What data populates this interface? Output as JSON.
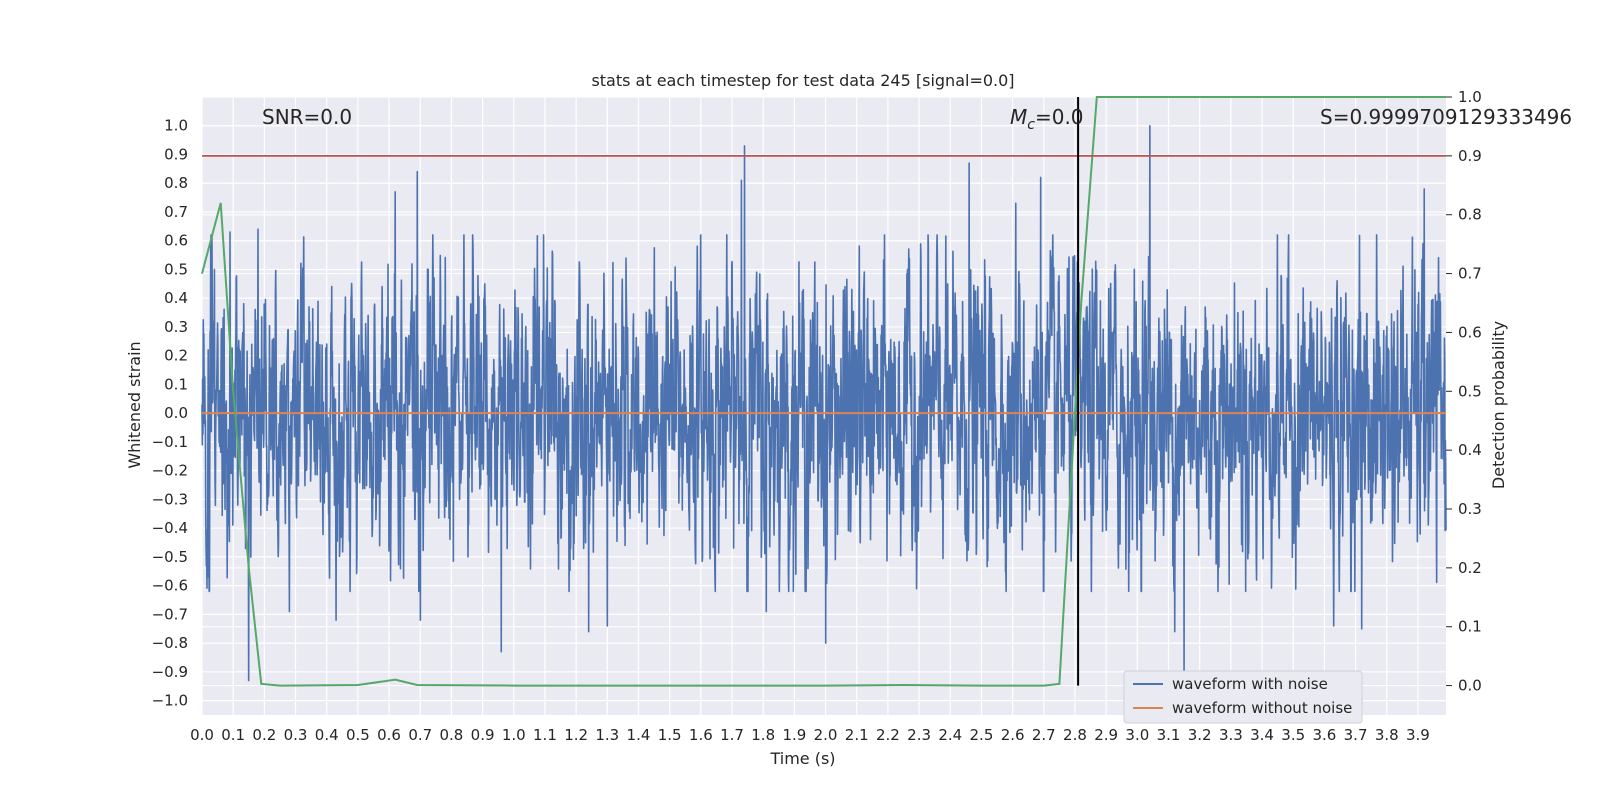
{
  "chart_data": {
    "type": "line",
    "title": "stats at each timestep for test data 245 [signal=0.0]",
    "xlabel": "Time (s)",
    "ylabel": "Whitened strain",
    "y2label": "Detection probability",
    "xlim": [
      0.0,
      3.99
    ],
    "ylim": [
      -1.05,
      1.1
    ],
    "y2lim": [
      -0.05,
      1.0
    ],
    "xticks": [
      0.0,
      0.1,
      0.2,
      0.3,
      0.4,
      0.5,
      0.6,
      0.7,
      0.8,
      0.9,
      1.0,
      1.1,
      1.2,
      1.3,
      1.4,
      1.5,
      1.6,
      1.7,
      1.8,
      1.9,
      2.0,
      2.1,
      2.2,
      2.3,
      2.4,
      2.5,
      2.6,
      2.7,
      2.8,
      2.9,
      3.0,
      3.1,
      3.2,
      3.3,
      3.4,
      3.5,
      3.6,
      3.7,
      3.8,
      3.9
    ],
    "yticks": [
      1.0,
      0.9,
      0.8,
      0.7,
      0.6,
      0.5,
      0.4,
      0.3,
      0.2,
      0.1,
      0.0,
      -0.1,
      -0.2,
      -0.3,
      -0.4,
      -0.5,
      -0.6,
      -0.7,
      -0.8,
      -0.9,
      -1.0
    ],
    "y2ticks": [
      1.0,
      0.9,
      0.8,
      0.7,
      0.6,
      0.5,
      0.4,
      0.3,
      0.2,
      0.1,
      0.0
    ],
    "grid": true,
    "legend_position": "bottom-right",
    "series": [
      {
        "name": "waveform with noise",
        "color": "#4c72b0",
        "axis": "left",
        "description": "whitened noisy strain, dense oscillation roughly between -0.6 and 0.6",
        "peaks": [
          [
            0.04,
            0.5
          ],
          [
            0.09,
            0.63
          ],
          [
            0.15,
            -0.93
          ],
          [
            0.18,
            0.64
          ],
          [
            0.28,
            -0.69
          ],
          [
            0.43,
            -0.72
          ],
          [
            0.62,
            0.77
          ],
          [
            0.69,
            0.84
          ],
          [
            0.7,
            -0.72
          ],
          [
            0.96,
            -0.83
          ],
          [
            1.24,
            -0.76
          ],
          [
            1.3,
            -0.74
          ],
          [
            1.73,
            0.81
          ],
          [
            1.74,
            0.93
          ],
          [
            1.81,
            -0.69
          ],
          [
            2.0,
            -0.8
          ],
          [
            2.46,
            0.87
          ],
          [
            2.61,
            0.73
          ],
          [
            2.69,
            0.82
          ],
          [
            3.04,
            1.0
          ],
          [
            3.12,
            -0.76
          ],
          [
            3.15,
            -0.92
          ],
          [
            3.63,
            -0.74
          ],
          [
            3.72,
            -0.75
          ],
          [
            3.92,
            0.78
          ]
        ]
      },
      {
        "name": "waveform without noise",
        "color": "#dd8452",
        "axis": "left",
        "x": [
          0.0,
          3.99
        ],
        "y": [
          0.0,
          0.0
        ]
      },
      {
        "name": "",
        "color": "#55a868",
        "axis": "right",
        "x": [
          0.0,
          0.06,
          0.1,
          0.15,
          0.19,
          0.25,
          0.5,
          0.62,
          0.69,
          1.0,
          2.0,
          2.25,
          2.5,
          2.7,
          2.75,
          2.82,
          2.87,
          3.0,
          3.5,
          3.9,
          3.99
        ],
        "y": [
          0.7,
          0.82,
          0.5,
          0.2,
          0.003,
          0.0,
          0.001,
          0.01,
          0.001,
          0.0,
          0.0,
          0.001,
          0.0,
          0.0,
          0.003,
          0.65,
          1.0,
          1.0,
          1.0,
          1.0,
          1.0
        ]
      }
    ],
    "reference_lines": [
      {
        "axis": "right",
        "type": "horizontal",
        "value": 0.9,
        "color": "#c44e52"
      },
      {
        "axis": "right",
        "type": "vertical",
        "value": 2.81,
        "range": [
          0.0,
          1.0
        ],
        "color": "#000000"
      }
    ],
    "annotations": {
      "snr": "SNR=0.0",
      "mc_symbol": "M",
      "mc_sub": "c",
      "mc_value": "=0.0",
      "s": "S=0.9999709129333496"
    }
  }
}
